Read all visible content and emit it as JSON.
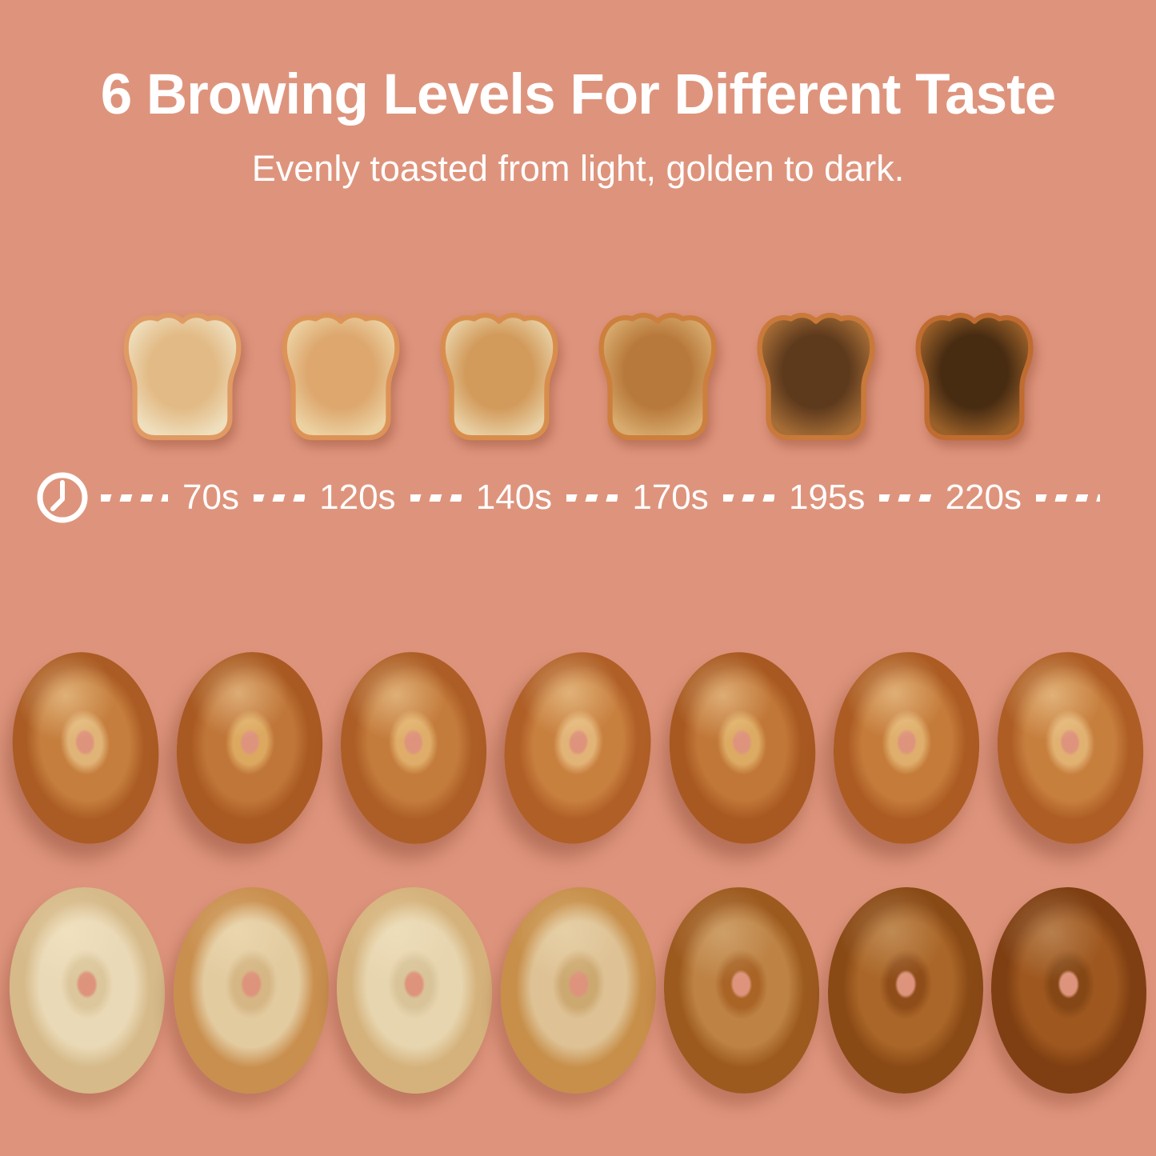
{
  "palette": {
    "background": "#de947c",
    "text": "#ffffff"
  },
  "header": {
    "title": "6 Browing Levels For Different Taste",
    "subtitle": "Evenly toasted from light, golden to dark."
  },
  "timeline": {
    "icon": "clock-icon",
    "labels": [
      "70s",
      "120s",
      "140s",
      "170s",
      "195s",
      "220s"
    ]
  },
  "toast_levels": [
    {
      "level": 1,
      "time": "70s",
      "description": "very light toast",
      "surface": "#efdfbe",
      "center": "#e2ba85",
      "crust": "#e09a63"
    },
    {
      "level": 2,
      "time": "120s",
      "description": "light golden toast",
      "surface": "#ecd2a3",
      "center": "#dda76e",
      "crust": "#dd9357"
    },
    {
      "level": 3,
      "time": "140s",
      "description": "golden toast",
      "surface": "#e8d0a4",
      "center": "#d29a5b",
      "crust": "#d98d4d"
    },
    {
      "level": 4,
      "time": "170s",
      "description": "medium brown toast",
      "surface": "#d8ab6e",
      "center": "#b87a3c",
      "crust": "#cd7f3e"
    },
    {
      "level": 5,
      "time": "195s",
      "description": "dark brown toast",
      "surface": "#a66d36",
      "center": "#5e3a1d",
      "crust": "#c97939"
    },
    {
      "level": 6,
      "time": "220s",
      "description": "very dark toast",
      "surface": "#9a6029",
      "center": "#482c12",
      "crust": "#c06c31"
    }
  ],
  "bagel_top_row": {
    "description": "seven whole bagels, golden-brown top side",
    "items": [
      {
        "name": "bagel-top-1",
        "inner": "#e0b377",
        "mid": "#c57e3d",
        "edge": "#ab5c24",
        "rotate": "-6deg"
      },
      {
        "name": "bagel-top-2",
        "inner": "#dca860",
        "mid": "#c07639",
        "edge": "#a95a22",
        "rotate": "4deg"
      },
      {
        "name": "bagel-top-3",
        "inner": "#dfad69",
        "mid": "#c47c3c",
        "edge": "#ad5e26",
        "rotate": "-3deg"
      },
      {
        "name": "bagel-top-4",
        "inner": "#e2b377",
        "mid": "#c8803f",
        "edge": "#b05f27",
        "rotate": "7deg"
      },
      {
        "name": "bagel-top-5",
        "inner": "#dcaa63",
        "mid": "#c17738",
        "edge": "#a85921",
        "rotate": "-5deg"
      },
      {
        "name": "bagel-top-6",
        "inner": "#dfae6c",
        "mid": "#c57c3b",
        "edge": "#ac5c23",
        "rotate": "3deg"
      },
      {
        "name": "bagel-top-7",
        "inner": "#e1b172",
        "mid": "#c77f3e",
        "edge": "#ae5e25",
        "rotate": "-4deg"
      }
    ]
  },
  "bagel_cut_row": {
    "description": "seven bagel halves cut side up, toasted from light to dark",
    "items": [
      {
        "name": "bagel-cut-1",
        "inner": "#dcc79d",
        "mid": "#ead9b6",
        "edge": "#d6ba8a",
        "rotate": "-3deg"
      },
      {
        "name": "bagel-cut-2",
        "inner": "#d5b684",
        "mid": "#e3cba0",
        "edge": "#c98f4f",
        "rotate": "2deg"
      },
      {
        "name": "bagel-cut-3",
        "inner": "#d9c49a",
        "mid": "#e7d5af",
        "edge": "#d5b27c",
        "rotate": "-2deg"
      },
      {
        "name": "bagel-cut-4",
        "inner": "#cda972",
        "mid": "#dec295",
        "edge": "#c78f4a",
        "rotate": "3deg"
      },
      {
        "name": "bagel-cut-5",
        "inner": "#a96426",
        "mid": "#bd8244",
        "edge": "#9d5a1f",
        "rotate": "-3deg"
      },
      {
        "name": "bagel-cut-6",
        "inner": "#8f4d19",
        "mid": "#aa6628",
        "edge": "#8a4a16",
        "rotate": "2deg"
      },
      {
        "name": "bagel-cut-7",
        "inner": "#854715",
        "mid": "#9e571f",
        "edge": "#7f3f12",
        "rotate": "-2deg"
      }
    ]
  }
}
